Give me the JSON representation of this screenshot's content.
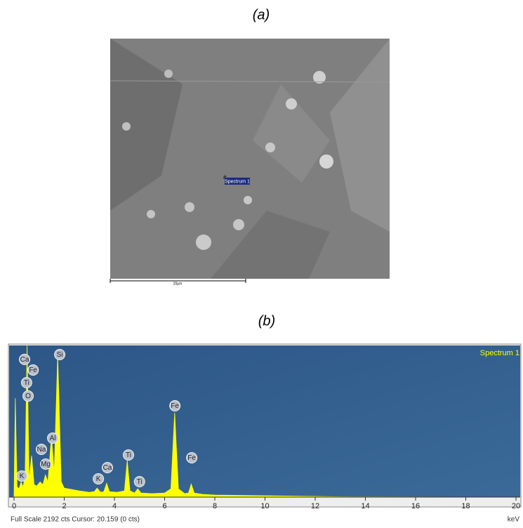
{
  "panel_a": {
    "label": "(a)",
    "marker_label": "Spectrum 1",
    "scale_bar": "20µm"
  },
  "chart_data": {
    "type": "area",
    "label": "(b)",
    "legend": "Spectrum 1",
    "x_label": "keV",
    "footer": "Full Scale 2192 cts Cursor: 20.159  (0 cts)",
    "xlim": [
      0,
      20
    ],
    "ylim": [
      0,
      2192
    ],
    "xticks": [
      0,
      2,
      4,
      6,
      8,
      10,
      12,
      14,
      16,
      18,
      20
    ],
    "series": [
      {
        "name": "Spectrum 1",
        "color": "#ffff00",
        "x": [
          0,
          0.05,
          0.12,
          0.2,
          0.28,
          0.36,
          0.44,
          0.52,
          0.6,
          0.7,
          0.8,
          0.9,
          1.04,
          1.15,
          1.25,
          1.35,
          1.49,
          1.6,
          1.74,
          1.88,
          2.0,
          2.3,
          2.6,
          3.0,
          3.2,
          3.31,
          3.45,
          3.58,
          3.69,
          3.8,
          4.1,
          4.4,
          4.51,
          4.62,
          4.8,
          4.93,
          5.06,
          5.5,
          6.0,
          6.25,
          6.4,
          6.55,
          6.8,
          6.95,
          7.06,
          7.18,
          7.5,
          8,
          9,
          10,
          11,
          12,
          13,
          14,
          16,
          18,
          20
        ],
        "values": [
          0,
          1430,
          150,
          120,
          220,
          150,
          300,
          2192,
          250,
          600,
          180,
          160,
          220,
          180,
          320,
          220,
          880,
          350,
          2060,
          220,
          130,
          110,
          90,
          70,
          80,
          130,
          70,
          80,
          200,
          80,
          70,
          90,
          530,
          90,
          60,
          120,
          60,
          50,
          60,
          120,
          1220,
          120,
          50,
          60,
          190,
          60,
          40,
          30,
          25,
          20,
          15,
          10,
          5,
          3,
          2,
          1,
          0
        ]
      }
    ],
    "annotations": [
      {
        "text": "Ca",
        "x": 0.42,
        "y": 1990
      },
      {
        "text": "Fe",
        "x": 0.76,
        "y": 1837
      },
      {
        "text": "Ti",
        "x": 0.5,
        "y": 1654
      },
      {
        "text": "O",
        "x": 0.56,
        "y": 1461
      },
      {
        "text": "Si",
        "x": 1.82,
        "y": 2060
      },
      {
        "text": "Al",
        "x": 1.54,
        "y": 853
      },
      {
        "text": "Na",
        "x": 1.09,
        "y": 690
      },
      {
        "text": "Mg",
        "x": 1.26,
        "y": 477
      },
      {
        "text": "K",
        "x": 0.31,
        "y": 305
      },
      {
        "text": "K",
        "x": 3.36,
        "y": 264
      },
      {
        "text": "Ca",
        "x": 3.72,
        "y": 426
      },
      {
        "text": "Ti",
        "x": 4.56,
        "y": 609
      },
      {
        "text": "Ti",
        "x": 5.0,
        "y": 223
      },
      {
        "text": "Fe",
        "x": 6.41,
        "y": 1320
      },
      {
        "text": "Fe",
        "x": 7.08,
        "y": 568
      }
    ]
  }
}
